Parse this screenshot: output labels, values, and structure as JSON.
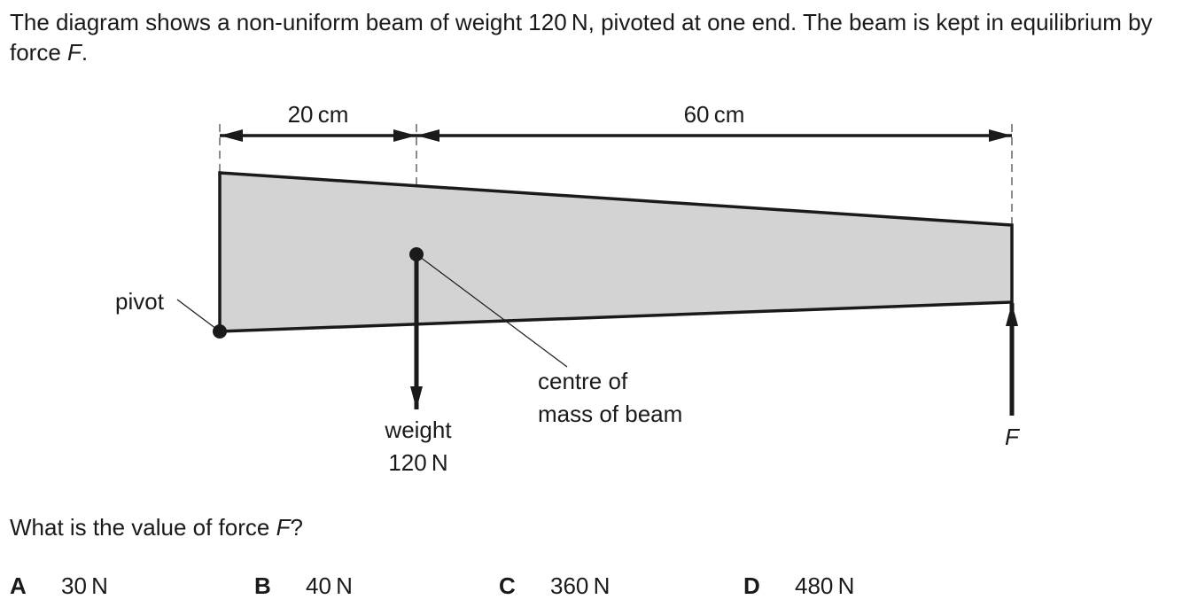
{
  "intro": {
    "part1": "The diagram shows a non-uniform beam of weight 120 N, pivoted at one end. The beam is kept in equilibrium by force ",
    "force_symbol": "F",
    "part2": "."
  },
  "diagram": {
    "dim_left": "20 cm",
    "dim_right": "60 cm",
    "pivot_label": "pivot",
    "weight_label_line1": "weight",
    "weight_label_line2": "120 N",
    "com_label_line1": "centre of",
    "com_label_line2": "mass of beam",
    "force_label": "F",
    "beam_fill": "#d3d3d3",
    "line_color": "#1a1a1a"
  },
  "question": {
    "part1": "What is the value of force ",
    "force_symbol": "F",
    "part2": "?"
  },
  "options": [
    {
      "letter": "A",
      "text": "30 N"
    },
    {
      "letter": "B",
      "text": "40 N"
    },
    {
      "letter": "C",
      "text": "360 N"
    },
    {
      "letter": "D",
      "text": "480 N"
    }
  ]
}
